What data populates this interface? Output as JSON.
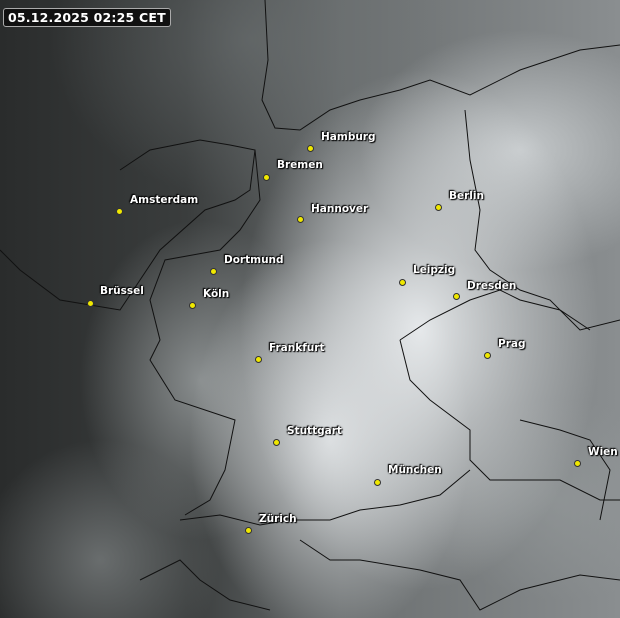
{
  "timestamp": "05.12.2025 02:25 CET",
  "marker_color": "#f0e800",
  "cities": [
    {
      "name": "Hamburg"
    },
    {
      "name": "Bremen"
    },
    {
      "name": "Amsterdam"
    },
    {
      "name": "Hannover"
    },
    {
      "name": "Berlin"
    },
    {
      "name": "Dortmund"
    },
    {
      "name": "Leipzig"
    },
    {
      "name": "Dresden"
    },
    {
      "name": "Brüssel"
    },
    {
      "name": "Köln"
    },
    {
      "name": "Frankfurt"
    },
    {
      "name": "Prag"
    },
    {
      "name": "Stuttgart"
    },
    {
      "name": "München"
    },
    {
      "name": "Wien"
    },
    {
      "name": "Zürich"
    }
  ]
}
